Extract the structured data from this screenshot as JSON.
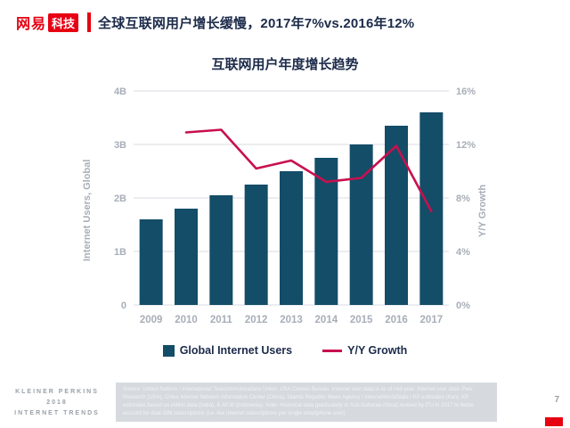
{
  "header": {
    "logo_netease": "网易",
    "logo_tech": "科技",
    "title": "全球互联网用户增长缓慢，2017年7%vs.2016年12%"
  },
  "chart": {
    "title": "互联网用户年度增长趋势"
  },
  "chart_data": {
    "type": "bar",
    "title": "互联网用户年度增长趋势",
    "categories": [
      "2009",
      "2010",
      "2011",
      "2012",
      "2013",
      "2014",
      "2015",
      "2016",
      "2017"
    ],
    "series": [
      {
        "name": "Global Internet Users",
        "type": "bar",
        "axis": "left",
        "values": [
          1.6,
          1.8,
          2.05,
          2.25,
          2.5,
          2.75,
          3.0,
          3.35,
          3.6
        ]
      },
      {
        "name": "Y/Y Growth",
        "type": "line",
        "axis": "right",
        "values": [
          null,
          12.9,
          13.1,
          10.2,
          10.8,
          9.2,
          9.5,
          11.9,
          7.0
        ]
      }
    ],
    "left_axis": {
      "label": "Internet Users, Global",
      "ticks": [
        "0",
        "1B",
        "2B",
        "3B",
        "4B"
      ],
      "range": [
        0,
        4
      ]
    },
    "right_axis": {
      "label": "Y/Y Growth",
      "ticks": [
        "0%",
        "4%",
        "8%",
        "12%",
        "16%"
      ],
      "range": [
        0,
        16
      ]
    },
    "grid": true,
    "legend_position": "bottom",
    "colors": {
      "bar": "#134d68",
      "line": "#c8104e"
    }
  },
  "footer": {
    "brand_line1": "KLEINER PERKINS",
    "brand_line2": "2018",
    "brand_line3": "INTERNET TRENDS",
    "source": "Source: United Nations / International Telecommunications Union, USA Census Bureau. Internet user data is as of mid-year. Internet user data: Pew Research (USA), China Internet Network Information Center (China), Islamic Republic News Agency / InternetWorldStats / KP estimates (Iran), KP estimates based on IAMAI data (India), & APJII (Indonesia). Note: Historical data (particularly in Sub-Saharan Africa) revised by ITU in 2017 to better account for dual-SIM subscriptions (i.e. live Internet subscriptions per single smartphone user).",
    "page_number": "7"
  }
}
